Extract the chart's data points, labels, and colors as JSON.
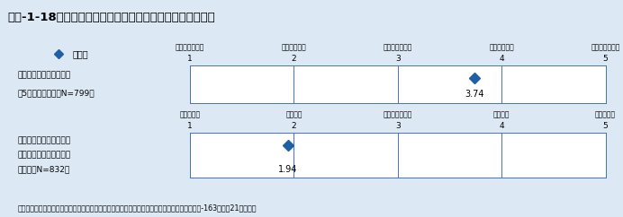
{
  "title": "第１-1-18図／我が国の人材の流動性に関する研究者の認識",
  "title_bg": "#c5dff0",
  "chart_bg": "#dce9f5",
  "panel_bg": "#ffffff",
  "footer": "資料：科学技術・学術政策研究所、文部科学省「我が国の科学技術人材の流動性調査」調査資料-163（平成21年１月）",
  "legend_label": "平均値",
  "row1": {
    "label_line1": "日本人の研究者の流動性",
    "label_line2": "は5年前に比べて（N=799）",
    "value": 3.74,
    "tick_labels": [
      "極めて減少した",
      "やや減少した",
      "変化していない",
      "やや増加した",
      "極めて増加した"
    ],
    "tick_nums": [
      "1",
      "2",
      "3",
      "4",
      "5"
    ]
  },
  "row2": {
    "label_line1": "国内機関間の流動性に関",
    "label_line2": "する我が国と他先進国と",
    "label_line3": "の比較（N=832）",
    "value": 1.94,
    "tick_labels": [
      "極めて低い",
      "やや低い",
      "変化していない",
      "やや高い",
      "極めて高い"
    ],
    "tick_nums": [
      "1",
      "2",
      "3",
      "4",
      "5"
    ]
  },
  "diamond_color": "#1f5fa6",
  "border_color": "#4472c4",
  "font_color": "#000000",
  "title_font_color": "#000000"
}
